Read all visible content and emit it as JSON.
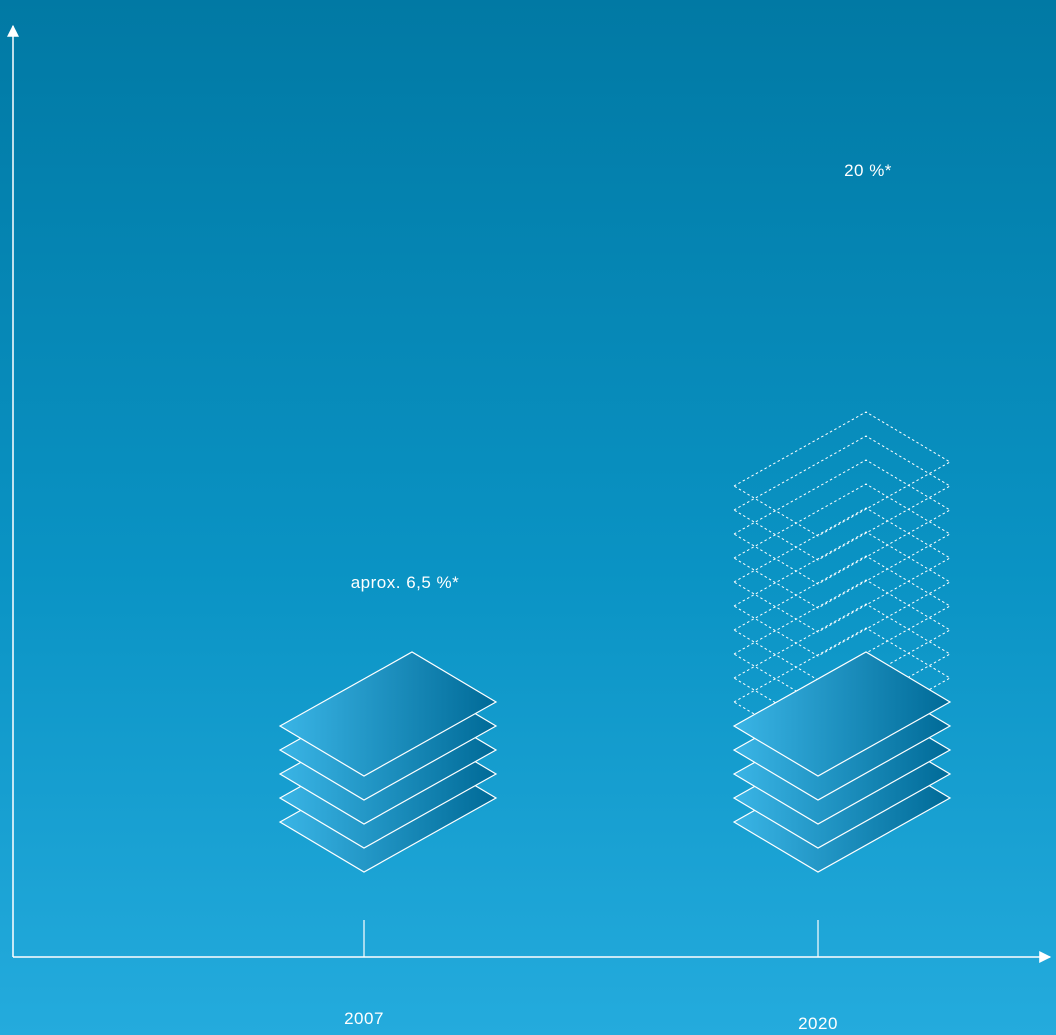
{
  "chart_data": {
    "type": "bar",
    "style": "stacked isometric layers",
    "categories": [
      "2007",
      "2020"
    ],
    "values": [
      6.5,
      20
    ],
    "value_labels": [
      "aprox. 6,5 %*",
      "20 %*"
    ],
    "ylim": [
      0,
      20
    ],
    "grid": false,
    "legend": "none",
    "colors": {
      "layer_light": "#3ab5e6",
      "layer_dark": "#006a97",
      "outline": "#ffffff"
    }
  }
}
